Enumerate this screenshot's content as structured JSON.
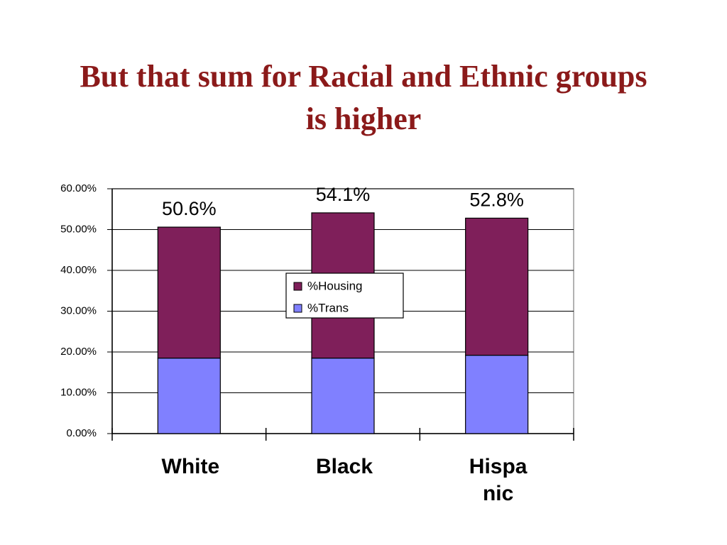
{
  "chart_data": {
    "type": "stacked_bar",
    "title": "But that sum for Racial and Ethnic groups is higher",
    "categories": [
      "White",
      "Black",
      "Hispa nic"
    ],
    "series": [
      {
        "name": "%Trans",
        "color": "#8080ff",
        "values": [
          18.5,
          18.5,
          19.2
        ]
      },
      {
        "name": "%Housing",
        "color": "#7f1f5a",
        "values": [
          32.1,
          35.6,
          33.6
        ]
      }
    ],
    "totals": [
      50.6,
      54.1,
      52.8
    ],
    "total_labels": [
      "50.6%",
      "54.1%",
      "52.8%"
    ],
    "ylim": [
      0,
      60
    ],
    "yticks": [
      {
        "value": 0,
        "label": "0.00%"
      },
      {
        "value": 10,
        "label": "10.00%"
      },
      {
        "value": 20,
        "label": "20.00%"
      },
      {
        "value": 30,
        "label": "30.00%"
      },
      {
        "value": 40,
        "label": "40.00%"
      },
      {
        "value": 50,
        "label": "50.00%"
      },
      {
        "value": 60,
        "label": "60.00%"
      }
    ],
    "grid": true
  }
}
